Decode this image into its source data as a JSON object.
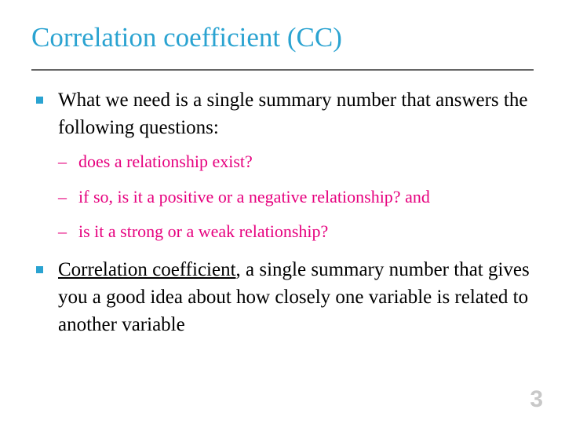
{
  "colors": {
    "title": "#2aa3d1",
    "divider": "#666666",
    "bullet_outer": "#2aa3d1",
    "body_text": "#000000",
    "sub_text": "#e6007e",
    "page_num": "#c8c8c8",
    "background": "#ffffff"
  },
  "fonts": {
    "title_family": "Times New Roman",
    "title_size_pt": 26,
    "body_family": "Times New Roman",
    "body_size_pt": 19,
    "sub_size_pt": 17,
    "page_num_family": "Arial",
    "page_num_size_pt": 22,
    "page_num_weight": "bold"
  },
  "title": "Correlation coefficient (CC)",
  "bullets": [
    {
      "text": "What we need is a single summary number that answers the following questions:",
      "sub": [
        "does a relationship exist?",
        "if so, is it a positive or a negative relationship? and",
        "is it a strong or a weak relationship?"
      ]
    },
    {
      "cc_term": "Correlation coefficient",
      "text_rest": ", a single summary number that gives you a good idea about how closely one variable is related to another variable"
    }
  ],
  "page_number": "3"
}
